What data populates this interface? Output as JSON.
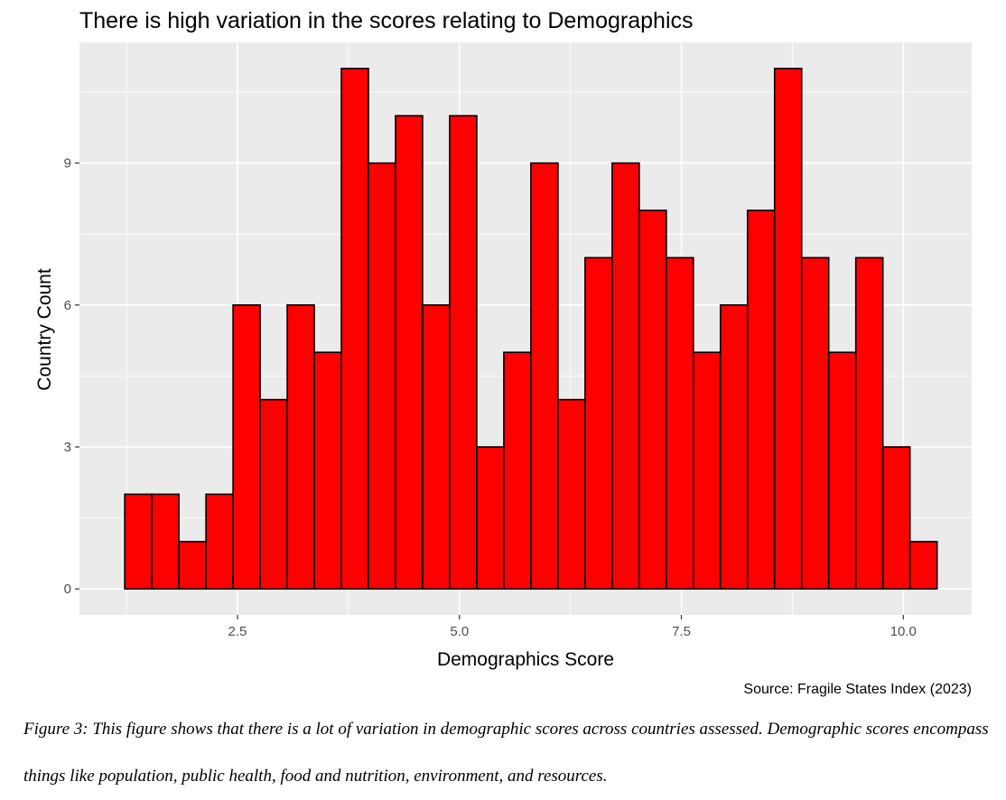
{
  "chart_data": {
    "type": "bar",
    "title": "There is high variation in the scores relating to Demographics",
    "xlabel": "Demographics Score",
    "ylabel": "Country Count",
    "source": "Source: Fragile States Index (2023)",
    "x_ticks": [
      "2.5",
      "5.0",
      "7.5",
      "10.0"
    ],
    "x_tick_values": [
      2.5,
      5.0,
      7.5,
      10.0
    ],
    "y_ticks": [
      "0",
      "3",
      "6",
      "9"
    ],
    "y_tick_values": [
      0,
      3,
      6,
      9
    ],
    "xlim": [
      0.72,
      10.77
    ],
    "ylim": [
      -0.55,
      11.55
    ],
    "bin_start": 1.23,
    "bin_width": 0.305,
    "bin_centers": [
      1.38,
      1.69,
      1.99,
      2.3,
      2.6,
      2.91,
      3.21,
      3.52,
      3.83,
      4.13,
      4.44,
      4.74,
      5.05,
      5.35,
      5.66,
      5.96,
      6.27,
      6.57,
      6.88,
      7.18,
      7.49,
      7.8,
      8.1,
      8.41,
      8.71,
      9.02,
      9.32,
      9.63,
      9.93,
      10.24
    ],
    "values": [
      2,
      2,
      1,
      2,
      6,
      4,
      6,
      5,
      11,
      9,
      10,
      6,
      10,
      3,
      5,
      9,
      4,
      7,
      9,
      8,
      7,
      5,
      6,
      8,
      11,
      7,
      5,
      7,
      3,
      1
    ],
    "bar_color": "#ff0000",
    "bar_outline": "#000000",
    "panel_background": "#ebebeb",
    "grid": true,
    "legend": "none"
  },
  "caption": "Figure 3: This figure shows that there is a lot of variation in demographic scores across countries assessed. Demographic scores encompass things like population, public health, food and nutrition, environment, and resources."
}
